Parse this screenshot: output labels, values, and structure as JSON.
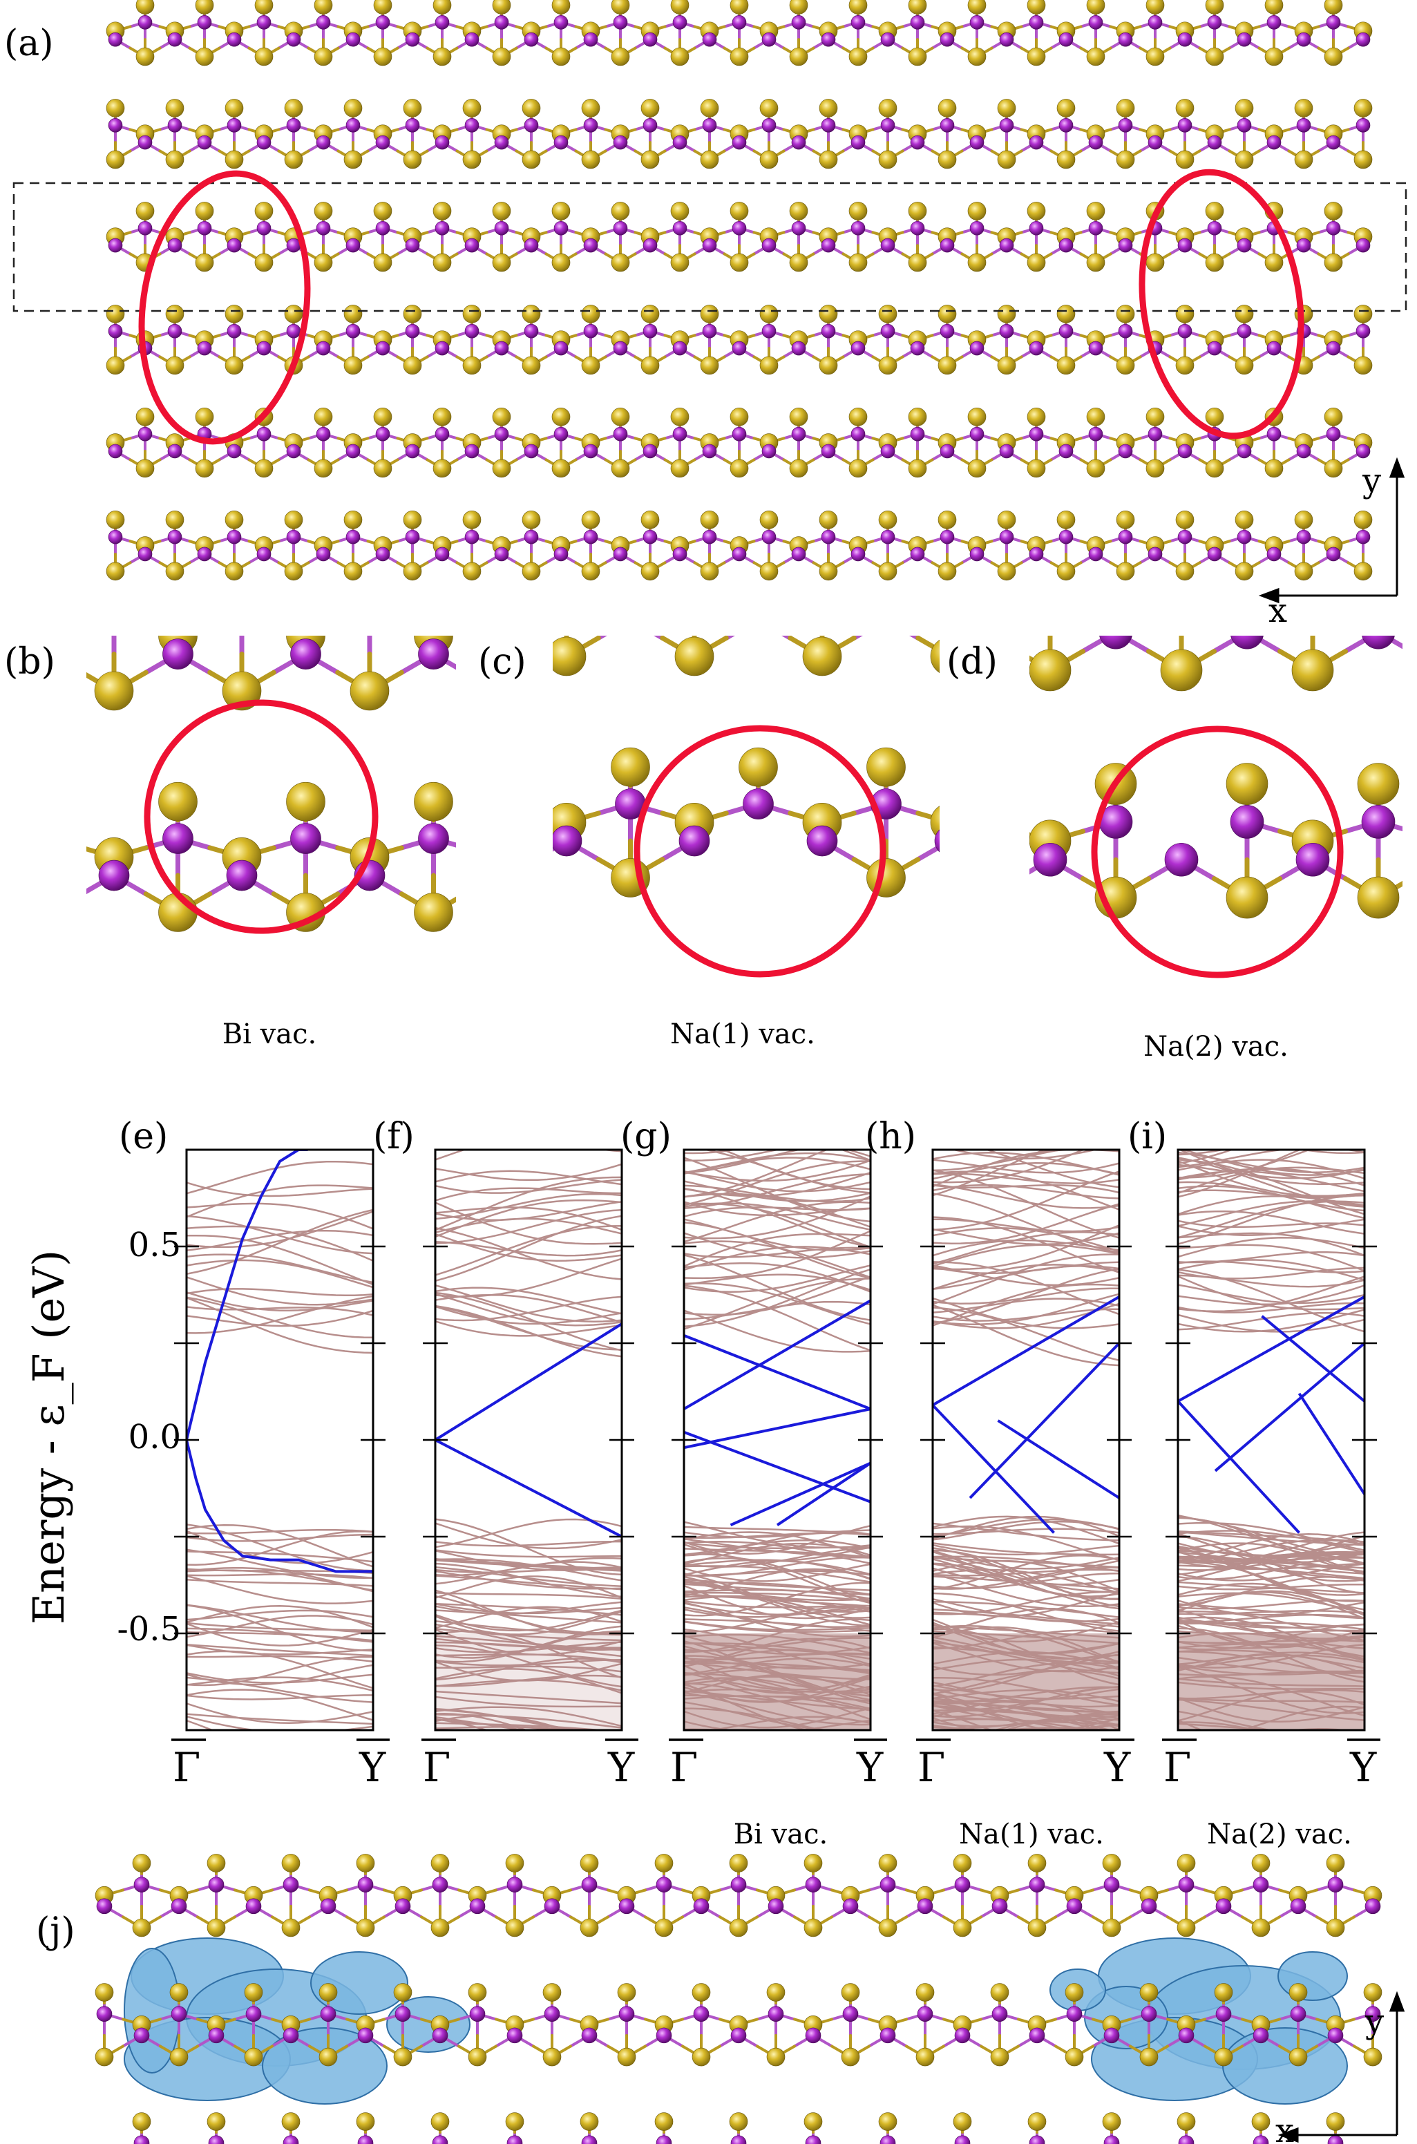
{
  "colors": {
    "bi_atom": "#aa33cc",
    "na_atom": "#cfb220",
    "bond_gold": "#b89a20",
    "bond_purple": "#b155c8",
    "highlight_circle": "#ee1133",
    "edge_state": "#1a1adb",
    "bulk_band": "#b78e8c",
    "density_cloud": "#7ab6e0"
  },
  "panels": {
    "a": "(a)",
    "b": "(b)",
    "c": "(c)",
    "d": "(d)",
    "e": "(e)",
    "f": "(f)",
    "g": "(g)",
    "h": "(h)",
    "i": "(i)",
    "j": "(j)"
  },
  "axes_labels": {
    "x": "x",
    "y": "y"
  },
  "vacancy_captions": {
    "bi": "Bi vac.",
    "na1": "Na(1) vac.",
    "na2": "Na(2) vac."
  },
  "chart_data": [
    {
      "id": "e",
      "type": "line",
      "xlabel": "",
      "ylabel": "Energy - ε_F (eV)",
      "ylim": [
        -0.75,
        0.75
      ],
      "yticks": [
        "0.5",
        "0.0",
        "-0.5"
      ],
      "xticks": [
        "Γ",
        "Y"
      ],
      "series": [
        {
          "name": "edge state",
          "x": [
            0,
            0.05,
            0.1,
            0.2,
            0.3,
            0.4,
            0.5,
            0.6,
            0.65
          ],
          "y": [
            0.0,
            0.1,
            0.2,
            0.36,
            0.52,
            0.63,
            0.72,
            0.75,
            0.75
          ]
        },
        {
          "name": "edge state",
          "x": [
            0,
            0.05,
            0.1,
            0.2,
            0.3,
            0.45,
            0.6,
            0.8,
            1.0
          ],
          "y": [
            0.0,
            -0.1,
            -0.18,
            -0.26,
            -0.3,
            -0.31,
            -0.31,
            -0.34,
            -0.34
          ]
        }
      ]
    },
    {
      "id": "f",
      "type": "line",
      "ylim": [
        -0.75,
        0.75
      ],
      "xticks": [
        "Γ",
        "Y"
      ],
      "series": [
        {
          "name": "edge state",
          "x": [
            0,
            1
          ],
          "y": [
            0.0,
            0.3
          ]
        },
        {
          "name": "edge state",
          "x": [
            0,
            1
          ],
          "y": [
            0.0,
            -0.25
          ]
        }
      ]
    },
    {
      "id": "g",
      "type": "line",
      "ylim": [
        -0.75,
        0.75
      ],
      "xticks": [
        "Γ",
        "Y"
      ],
      "caption": "Bi vac.",
      "series": [
        {
          "name": "edge state",
          "x": [
            0,
            1
          ],
          "y": [
            0.27,
            0.08
          ]
        },
        {
          "name": "edge state",
          "x": [
            0,
            1
          ],
          "y": [
            0.08,
            0.36
          ]
        },
        {
          "name": "edge state",
          "x": [
            0,
            1
          ],
          "y": [
            0.02,
            -0.16
          ]
        },
        {
          "name": "edge state",
          "x": [
            0,
            1
          ],
          "y": [
            -0.02,
            0.08
          ]
        },
        {
          "name": "edge state",
          "x": [
            0.25,
            1
          ],
          "y": [
            -0.22,
            -0.06
          ]
        },
        {
          "name": "edge state",
          "x": [
            0.5,
            1
          ],
          "y": [
            -0.22,
            -0.06
          ]
        }
      ]
    },
    {
      "id": "h",
      "type": "line",
      "ylim": [
        -0.75,
        0.75
      ],
      "xticks": [
        "Γ",
        "Y"
      ],
      "caption": "Na(1) vac.",
      "series": [
        {
          "name": "edge state",
          "x": [
            0,
            1
          ],
          "y": [
            0.09,
            0.37
          ]
        },
        {
          "name": "edge state",
          "x": [
            0,
            0.65
          ],
          "y": [
            0.09,
            -0.24
          ]
        },
        {
          "name": "edge state",
          "x": [
            0.2,
            1
          ],
          "y": [
            -0.15,
            0.25
          ]
        },
        {
          "name": "edge state",
          "x": [
            0.35,
            1
          ],
          "y": [
            0.05,
            -0.15
          ]
        }
      ]
    },
    {
      "id": "i",
      "type": "line",
      "ylim": [
        -0.75,
        0.75
      ],
      "xticks": [
        "Γ",
        "Y"
      ],
      "caption": "Na(2) vac.",
      "series": [
        {
          "name": "edge state",
          "x": [
            0,
            1
          ],
          "y": [
            0.1,
            0.37
          ]
        },
        {
          "name": "edge state",
          "x": [
            0,
            0.65
          ],
          "y": [
            0.1,
            -0.24
          ]
        },
        {
          "name": "edge state",
          "x": [
            0.2,
            1
          ],
          "y": [
            -0.08,
            0.25
          ]
        },
        {
          "name": "edge state",
          "x": [
            0.45,
            1
          ],
          "y": [
            0.32,
            0.1
          ]
        },
        {
          "name": "edge state",
          "x": [
            0.65,
            1
          ],
          "y": [
            0.12,
            -0.14
          ]
        }
      ]
    }
  ]
}
